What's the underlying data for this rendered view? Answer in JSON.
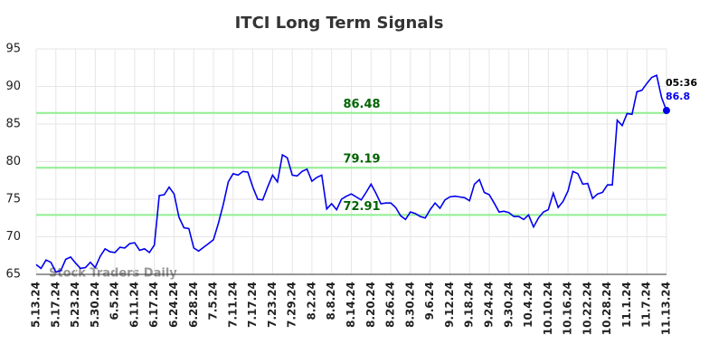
{
  "chart_data": {
    "type": "line",
    "title": "ITCI Long Term Signals",
    "watermark": "Stock Traders Daily",
    "time_label": "05:36",
    "categories": [
      "5.13.24",
      null,
      null,
      null,
      "5.17.24",
      null,
      null,
      null,
      "5.23.24",
      null,
      null,
      null,
      "5.30.24",
      null,
      null,
      null,
      "6.5.24",
      null,
      null,
      null,
      "6.11.24",
      null,
      null,
      null,
      "6.17.24",
      null,
      null,
      null,
      "6.24.24",
      null,
      null,
      null,
      "6.28.24",
      null,
      null,
      null,
      "7.5.24",
      null,
      null,
      null,
      "7.11.24",
      null,
      null,
      null,
      "7.17.24",
      null,
      null,
      null,
      "7.23.24",
      null,
      null,
      null,
      "7.29.24",
      null,
      null,
      null,
      "8.2.24",
      null,
      null,
      null,
      "8.8.24",
      null,
      null,
      null,
      "8.14.24",
      null,
      null,
      null,
      "8.20.24",
      null,
      null,
      null,
      "8.26.24",
      null,
      null,
      null,
      "8.30.24",
      null,
      null,
      null,
      "9.6.24",
      null,
      null,
      null,
      "9.12.24",
      null,
      null,
      null,
      "9.18.24",
      null,
      null,
      null,
      "9.24.24",
      null,
      null,
      null,
      "9.30.24",
      null,
      null,
      null,
      "10.4.24",
      null,
      null,
      null,
      "10.10.24",
      null,
      null,
      null,
      "10.16.24",
      null,
      null,
      null,
      "10.22.24",
      null,
      null,
      null,
      "10.28.24",
      null,
      null,
      null,
      "11.1.24",
      null,
      null,
      null,
      "11.7.24",
      null,
      null,
      null,
      "11.13.24"
    ],
    "series": [
      {
        "color": "#0000ee",
        "values": [
          66.3,
          65.8,
          66.9,
          66.6,
          65.3,
          65.5,
          67.0,
          67.3,
          66.5,
          65.8,
          65.9,
          66.6,
          65.9,
          67.4,
          68.4,
          68.0,
          67.9,
          68.6,
          68.5,
          69.1,
          69.2,
          68.2,
          68.4,
          67.9,
          68.9,
          75.5,
          75.6,
          76.6,
          75.7,
          72.6,
          71.2,
          71.1,
          68.5,
          68.1,
          68.6,
          69.1,
          69.6,
          71.8,
          74.3,
          77.3,
          78.4,
          78.2,
          78.7,
          78.6,
          76.6,
          75.0,
          74.9,
          76.6,
          78.2,
          77.3,
          80.9,
          80.5,
          78.2,
          78.1,
          78.7,
          79.0,
          77.4,
          77.9,
          78.2,
          73.7,
          74.4,
          73.6,
          75.0,
          75.4,
          75.7,
          75.3,
          74.9,
          75.9,
          77.0,
          75.8,
          74.4,
          74.5,
          74.5,
          73.9,
          72.8,
          72.3,
          73.3,
          73.1,
          72.7,
          72.5,
          73.6,
          74.5,
          73.8,
          74.9,
          75.3,
          75.4,
          75.3,
          75.2,
          74.8,
          77.0,
          77.6,
          75.9,
          75.6,
          74.5,
          73.3,
          73.4,
          73.2,
          72.7,
          72.7,
          72.3,
          72.9,
          71.3,
          72.5,
          73.3,
          73.6,
          75.8,
          73.9,
          74.7,
          76.1,
          78.7,
          78.4,
          77.0,
          77.1,
          75.1,
          75.7,
          75.9,
          76.9,
          76.9,
          85.5,
          84.8,
          86.4,
          86.3,
          89.3,
          89.5,
          90.4,
          91.2,
          91.5,
          88.5,
          86.8
        ]
      }
    ],
    "hlines": [
      {
        "value": 86.48,
        "color": "#90ee90",
        "label_color": "#006400"
      },
      {
        "value": 79.19,
        "color": "#90ee90",
        "label_color": "#006400"
      },
      {
        "value": 72.91,
        "color": "#90ee90",
        "label_color": "#006400"
      }
    ],
    "ylim": [
      65,
      95
    ],
    "yticks": [
      65,
      70,
      75,
      80,
      85,
      90,
      95
    ],
    "grid": true
  }
}
